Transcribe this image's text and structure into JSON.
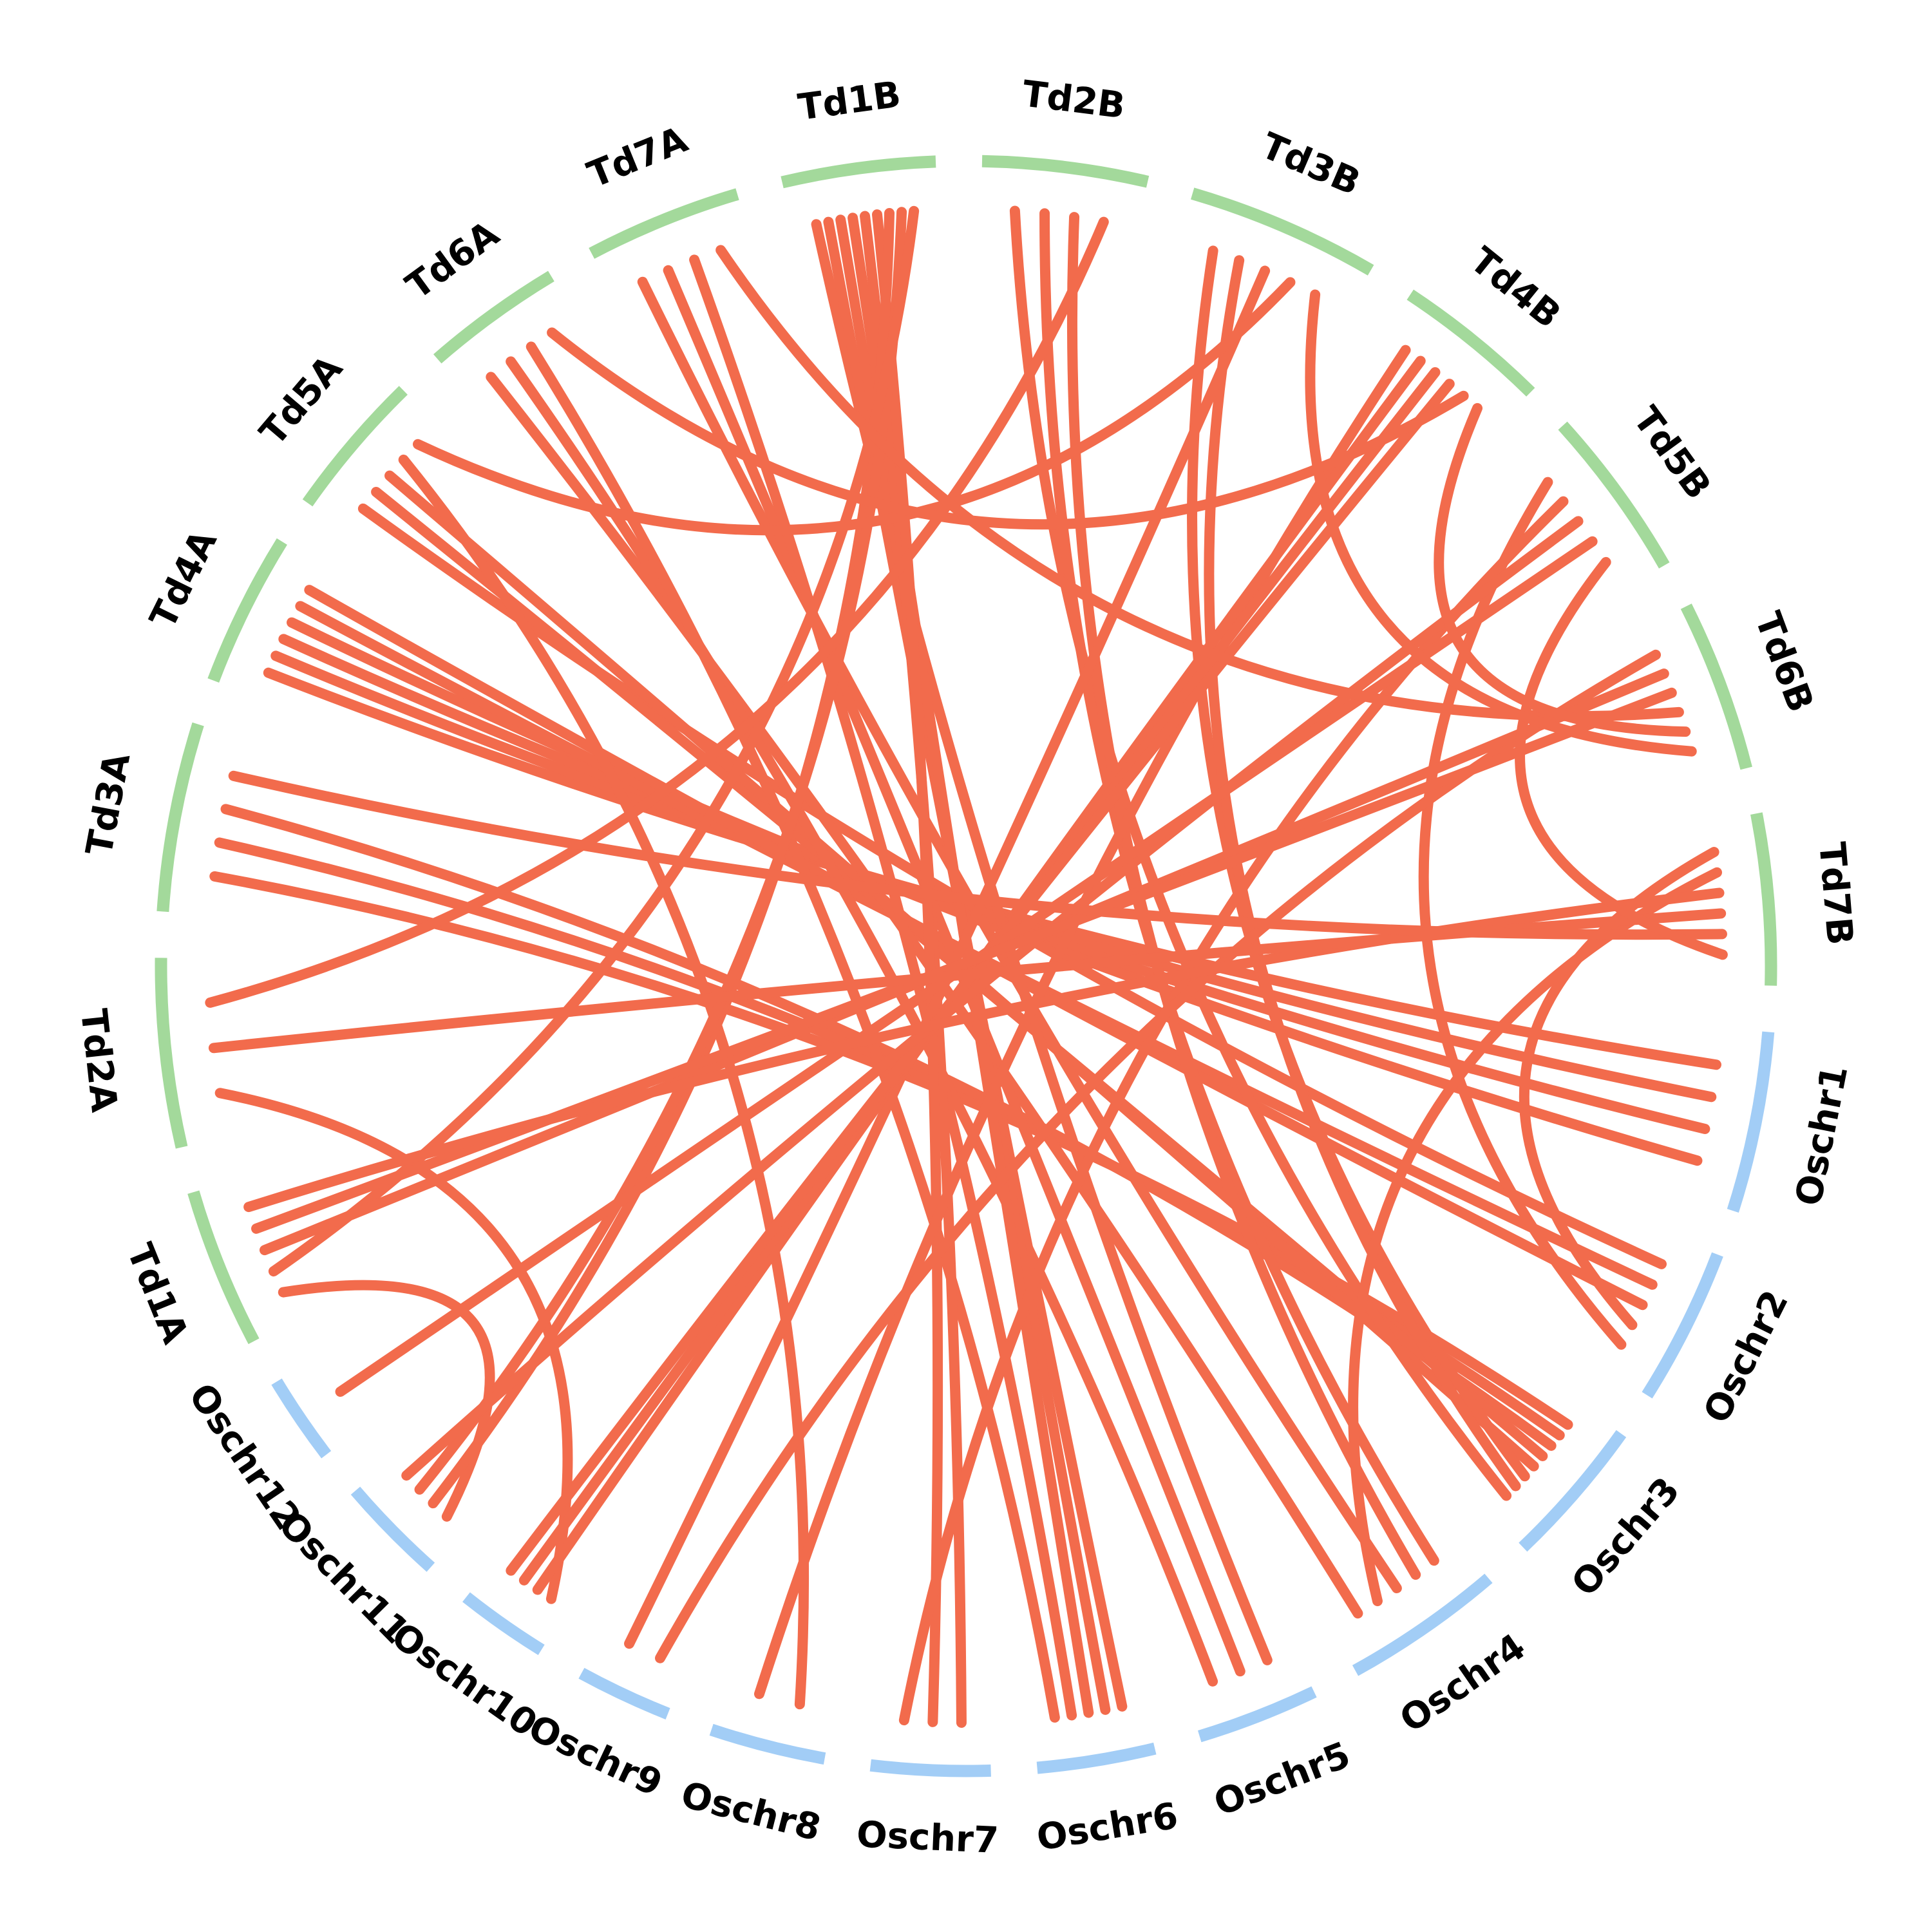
{
  "colors": {
    "rice_segment": "#a2cdf6",
    "wheat_segment": "#a3d99b",
    "link": "#f26b4c",
    "label": "#000000"
  },
  "segments": [
    {
      "id": "Oschr1",
      "label": "Oschr1",
      "group": "rice"
    },
    {
      "id": "Oschr2",
      "label": "Oschr2",
      "group": "rice"
    },
    {
      "id": "Oschr3",
      "label": "Oschr3",
      "group": "rice"
    },
    {
      "id": "Oschr4",
      "label": "Oschr4",
      "group": "rice"
    },
    {
      "id": "Oschr5",
      "label": "Oschr5",
      "group": "rice"
    },
    {
      "id": "Oschr6",
      "label": "Oschr6",
      "group": "rice"
    },
    {
      "id": "Oschr7",
      "label": "Oschr7",
      "group": "rice"
    },
    {
      "id": "Oschr8",
      "label": "Oschr8",
      "group": "rice"
    },
    {
      "id": "Oschr9",
      "label": "Oschr9",
      "group": "rice"
    },
    {
      "id": "Oschr10",
      "label": "Oschr10",
      "group": "rice"
    },
    {
      "id": "Oschr11",
      "label": "Oschr11",
      "group": "rice"
    },
    {
      "id": "Oschr12",
      "label": "Oschr12",
      "group": "rice"
    },
    {
      "id": "Td1A",
      "label": "Td1A",
      "group": "wheat"
    },
    {
      "id": "Td2A",
      "label": "Td2A",
      "group": "wheat"
    },
    {
      "id": "Td3A",
      "label": "Td3A",
      "group": "wheat"
    },
    {
      "id": "Td4A",
      "label": "Td4A",
      "group": "wheat"
    },
    {
      "id": "Td5A",
      "label": "Td5A",
      "group": "wheat"
    },
    {
      "id": "Td6A",
      "label": "Td6A",
      "group": "wheat"
    },
    {
      "id": "Td7A",
      "label": "Td7A",
      "group": "wheat"
    },
    {
      "id": "Td1B",
      "label": "Td1B",
      "group": "wheat"
    },
    {
      "id": "Td2B",
      "label": "Td2B",
      "group": "wheat"
    },
    {
      "id": "Td3B",
      "label": "Td3B",
      "group": "wheat"
    },
    {
      "id": "Td4B",
      "label": "Td4B",
      "group": "wheat"
    },
    {
      "id": "Td5B",
      "label": "Td5B",
      "group": "wheat"
    },
    {
      "id": "Td6B",
      "label": "Td6B",
      "group": "wheat"
    },
    {
      "id": "Td7B",
      "label": "Td7B",
      "group": "wheat"
    }
  ],
  "links": [
    {
      "from": "Oschr1",
      "to": "Td4A"
    },
    {
      "from": "Oschr1",
      "to": "Td4A"
    },
    {
      "from": "Oschr1",
      "to": "Td4A"
    },
    {
      "from": "Oschr1",
      "to": "Td4A"
    },
    {
      "from": "Oschr2",
      "to": "Td5A"
    },
    {
      "from": "Oschr2",
      "to": "Td4A"
    },
    {
      "from": "Oschr2",
      "to": "Td4A"
    },
    {
      "from": "Oschr2",
      "to": "Td7B"
    },
    {
      "from": "Oschr2",
      "to": "Td5B"
    },
    {
      "from": "Oschr3",
      "to": "Td3A"
    },
    {
      "from": "Oschr3",
      "to": "Td3A"
    },
    {
      "from": "Oschr3",
      "to": "Td3A"
    },
    {
      "from": "Oschr3",
      "to": "Td5A"
    },
    {
      "from": "Oschr3",
      "to": "Td5A"
    },
    {
      "from": "Oschr3",
      "to": "Td3B"
    },
    {
      "from": "Oschr3",
      "to": "Td3B"
    },
    {
      "from": "Oschr3",
      "to": "Td2B"
    },
    {
      "from": "Oschr4",
      "to": "Td2B"
    },
    {
      "from": "Oschr4",
      "to": "Td2B"
    },
    {
      "from": "Oschr4",
      "to": "Td7A"
    },
    {
      "from": "Oschr4",
      "to": "Td7B"
    },
    {
      "from": "Oschr4",
      "to": "Td6A"
    },
    {
      "from": "Oschr5",
      "to": "Td1B"
    },
    {
      "from": "Oschr5",
      "to": "Td7A"
    },
    {
      "from": "Oschr5",
      "to": "Td6A"
    },
    {
      "from": "Oschr6",
      "to": "Td1B"
    },
    {
      "from": "Oschr6",
      "to": "Td1B"
    },
    {
      "from": "Oschr6",
      "to": "Td1B"
    },
    {
      "from": "Oschr6",
      "to": "Td7A"
    },
    {
      "from": "Oschr6",
      "to": "Td6A"
    },
    {
      "from": "Oschr7",
      "to": "Td1B"
    },
    {
      "from": "Oschr7",
      "to": "Td1B"
    },
    {
      "from": "Oschr7",
      "to": "Td5B"
    },
    {
      "from": "Oschr8",
      "to": "Td5A"
    },
    {
      "from": "Oschr8",
      "to": "Td4B"
    },
    {
      "from": "Oschr9",
      "to": "Td6B"
    },
    {
      "from": "Oschr9",
      "to": "Td3B"
    },
    {
      "from": "Oschr10",
      "to": "Td2A"
    },
    {
      "from": "Oschr10",
      "to": "Td4B"
    },
    {
      "from": "Oschr10",
      "to": "Td4B"
    },
    {
      "from": "Oschr10",
      "to": "Td4B"
    },
    {
      "from": "Oschr11",
      "to": "Td1A"
    },
    {
      "from": "Oschr11",
      "to": "Td1B"
    },
    {
      "from": "Oschr11",
      "to": "Td1B"
    },
    {
      "from": "Oschr11",
      "to": "Td5B"
    },
    {
      "from": "Oschr12",
      "to": "Td5B"
    },
    {
      "from": "Td1A",
      "to": "Td1B"
    },
    {
      "from": "Td1A",
      "to": "Td6B"
    },
    {
      "from": "Td1A",
      "to": "Td6B"
    },
    {
      "from": "Td1A",
      "to": "Td7B"
    },
    {
      "from": "Td2A",
      "to": "Td7B"
    },
    {
      "from": "Td2A",
      "to": "Td2B"
    },
    {
      "from": "Td3A",
      "to": "Td7B"
    },
    {
      "from": "Td5A",
      "to": "Td3B"
    },
    {
      "from": "Td6A",
      "to": "Td4B"
    },
    {
      "from": "Td7A",
      "to": "Td6B"
    },
    {
      "from": "Td7B",
      "to": "Td5B"
    },
    {
      "from": "Td6B",
      "to": "Td4B"
    },
    {
      "from": "Td6B",
      "to": "Td3B"
    }
  ]
}
